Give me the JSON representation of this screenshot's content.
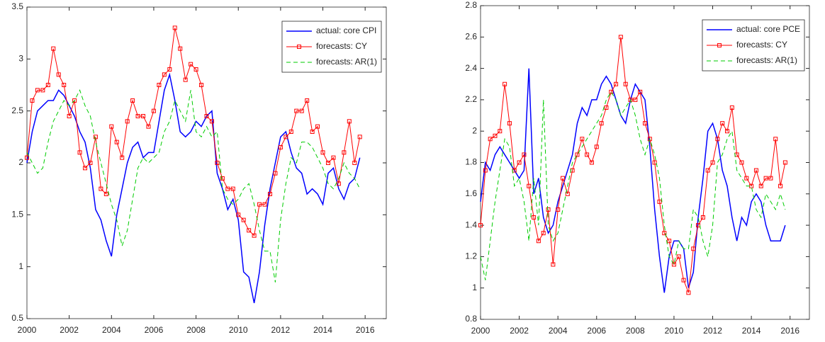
{
  "chart_data": [
    {
      "type": "line",
      "x": [
        2000,
        2000.25,
        2000.5,
        2000.75,
        2001,
        2001.25,
        2001.5,
        2001.75,
        2002,
        2002.25,
        2002.5,
        2002.75,
        2003,
        2003.25,
        2003.5,
        2003.75,
        2004,
        2004.25,
        2004.5,
        2004.75,
        2005,
        2005.25,
        2005.5,
        2005.75,
        2006,
        2006.25,
        2006.5,
        2006.75,
        2007,
        2007.25,
        2007.5,
        2007.75,
        2008,
        2008.25,
        2008.5,
        2008.75,
        2009,
        2009.25,
        2009.5,
        2009.75,
        2010,
        2010.25,
        2010.5,
        2010.75,
        2011,
        2011.25,
        2011.5,
        2011.75,
        2012,
        2012.25,
        2012.5,
        2012.75,
        2013,
        2013.25,
        2013.5,
        2013.75,
        2014,
        2014.25,
        2014.5,
        2014.75,
        2015,
        2015.25,
        2015.5,
        2015.75
      ],
      "series": [
        {
          "name": "actual: core CPI",
          "color": "#0000ff",
          "linestyle": "solid",
          "marker": "none",
          "values": [
            2.0,
            2.3,
            2.5,
            2.55,
            2.6,
            2.6,
            2.7,
            2.65,
            2.55,
            2.45,
            2.3,
            2.2,
            1.95,
            1.55,
            1.45,
            1.25,
            1.1,
            1.5,
            1.75,
            2.0,
            2.15,
            2.2,
            2.05,
            2.1,
            2.1,
            2.4,
            2.7,
            2.85,
            2.6,
            2.3,
            2.25,
            2.3,
            2.4,
            2.35,
            2.45,
            2.5,
            1.9,
            1.75,
            1.55,
            1.65,
            1.45,
            0.95,
            0.9,
            0.65,
            0.95,
            1.4,
            1.75,
            2.0,
            2.25,
            2.3,
            2.1,
            1.95,
            1.9,
            1.7,
            1.75,
            1.7,
            1.6,
            1.9,
            1.95,
            1.75,
            1.65,
            1.8,
            1.85,
            2.05
          ]
        },
        {
          "name": "forecasts: CY",
          "color": "#ff0000",
          "linestyle": "solid",
          "marker": "square",
          "values": [
            2.05,
            2.6,
            2.7,
            2.7,
            2.75,
            3.1,
            2.85,
            2.75,
            2.45,
            2.6,
            2.1,
            1.95,
            2.0,
            2.25,
            1.75,
            1.7,
            2.35,
            2.2,
            2.05,
            2.4,
            2.6,
            2.45,
            2.45,
            2.35,
            2.5,
            2.75,
            2.85,
            2.9,
            3.3,
            3.1,
            2.8,
            2.95,
            2.9,
            2.75,
            2.45,
            2.4,
            2.0,
            1.85,
            1.75,
            1.75,
            1.5,
            1.45,
            1.35,
            1.3,
            1.6,
            1.6,
            1.7,
            1.9,
            2.15,
            2.25,
            2.3,
            2.5,
            2.5,
            2.6,
            2.3,
            2.35,
            2.1,
            2.0,
            2.05,
            1.8,
            2.1,
            2.4,
            2.0,
            2.25
          ]
        },
        {
          "name": "forecasts: AR(1)",
          "color": "#00cc00",
          "linestyle": "dashed",
          "marker": "none",
          "values": [
            2.1,
            2.0,
            1.9,
            1.95,
            2.2,
            2.4,
            2.5,
            2.6,
            2.55,
            2.6,
            2.7,
            2.55,
            2.45,
            2.2,
            2.0,
            1.8,
            1.6,
            1.45,
            1.2,
            1.35,
            1.65,
            1.95,
            2.05,
            2.0,
            2.05,
            2.1,
            2.3,
            2.4,
            2.6,
            2.5,
            2.4,
            2.7,
            2.3,
            2.25,
            2.35,
            2.25,
            2.3,
            1.75,
            1.65,
            1.6,
            1.65,
            1.75,
            1.8,
            1.6,
            1.35,
            1.15,
            1.15,
            0.85,
            1.45,
            1.8,
            2.05,
            2.0,
            2.2,
            2.2,
            2.15,
            2.05,
            1.95,
            1.8,
            1.75,
            1.85,
            2.0,
            1.9,
            1.85,
            1.75
          ]
        }
      ],
      "xlim": [
        2000,
        2017
      ],
      "xticks": [
        2000,
        2002,
        2004,
        2006,
        2008,
        2010,
        2012,
        2014,
        2016
      ],
      "ylim": [
        0.5,
        3.5
      ],
      "yticks": [
        0.5,
        1,
        1.5,
        2,
        2.5,
        3,
        3.5
      ],
      "grid": false,
      "legend": "upper-right"
    },
    {
      "type": "line",
      "x": [
        2000,
        2000.25,
        2000.5,
        2000.75,
        2001,
        2001.25,
        2001.5,
        2001.75,
        2002,
        2002.25,
        2002.5,
        2002.75,
        2003,
        2003.25,
        2003.5,
        2003.75,
        2004,
        2004.25,
        2004.5,
        2004.75,
        2005,
        2005.25,
        2005.5,
        2005.75,
        2006,
        2006.25,
        2006.5,
        2006.75,
        2007,
        2007.25,
        2007.5,
        2007.75,
        2008,
        2008.25,
        2008.5,
        2008.75,
        2009,
        2009.25,
        2009.5,
        2009.75,
        2010,
        2010.25,
        2010.5,
        2010.75,
        2011,
        2011.25,
        2011.5,
        2011.75,
        2012,
        2012.25,
        2012.5,
        2012.75,
        2013,
        2013.25,
        2013.5,
        2013.75,
        2014,
        2014.25,
        2014.5,
        2014.75,
        2015,
        2015.25,
        2015.5,
        2015.75
      ],
      "series": [
        {
          "name": "actual: core PCE",
          "color": "#0000ff",
          "linestyle": "solid",
          "marker": "none",
          "values": [
            1.55,
            1.8,
            1.75,
            1.85,
            1.9,
            1.85,
            1.8,
            1.75,
            1.7,
            1.75,
            2.4,
            1.6,
            1.7,
            1.45,
            1.35,
            1.4,
            1.55,
            1.65,
            1.75,
            1.85,
            2.05,
            2.15,
            2.1,
            2.2,
            2.2,
            2.3,
            2.35,
            2.3,
            2.2,
            2.1,
            2.05,
            2.2,
            2.3,
            2.25,
            2.2,
            1.9,
            1.5,
            1.2,
            0.97,
            1.2,
            1.3,
            1.3,
            1.25,
            1.0,
            1.1,
            1.45,
            1.7,
            2.0,
            2.05,
            1.95,
            1.75,
            1.65,
            1.45,
            1.3,
            1.45,
            1.4,
            1.55,
            1.6,
            1.55,
            1.4,
            1.3,
            1.3,
            1.3,
            1.4
          ]
        },
        {
          "name": "forecasts: CY",
          "color": "#ff0000",
          "linestyle": "solid",
          "marker": "square",
          "values": [
            1.4,
            1.75,
            1.95,
            1.97,
            2.0,
            2.3,
            2.05,
            1.75,
            1.8,
            1.85,
            1.65,
            1.45,
            1.3,
            1.35,
            1.5,
            1.15,
            1.5,
            1.7,
            1.6,
            1.75,
            1.85,
            1.95,
            1.85,
            1.8,
            1.9,
            2.05,
            2.15,
            2.25,
            2.3,
            2.6,
            2.3,
            2.2,
            2.2,
            2.25,
            2.05,
            1.95,
            1.8,
            1.55,
            1.35,
            1.3,
            1.15,
            1.2,
            1.05,
            0.97,
            1.25,
            1.4,
            1.45,
            1.75,
            1.8,
            1.95,
            2.05,
            2.0,
            2.15,
            1.85,
            1.8,
            1.7,
            1.65,
            1.75,
            1.65,
            1.7,
            1.7,
            1.95,
            1.65,
            1.8
          ]
        },
        {
          "name": "forecasts: AR(1)",
          "color": "#00cc00",
          "linestyle": "dashed",
          "marker": "none",
          "values": [
            1.2,
            1.05,
            1.3,
            1.55,
            1.75,
            1.95,
            1.9,
            1.65,
            1.7,
            1.55,
            1.3,
            1.7,
            1.4,
            2.2,
            1.4,
            1.3,
            1.35,
            1.5,
            1.65,
            1.8,
            1.85,
            1.9,
            1.95,
            2.0,
            2.05,
            2.1,
            2.2,
            2.25,
            2.2,
            2.1,
            2.15,
            2.2,
            2.1,
            1.95,
            1.85,
            1.95,
            1.85,
            1.7,
            1.4,
            1.2,
            1.15,
            1.3,
            1.25,
            1.25,
            1.5,
            1.45,
            1.3,
            1.2,
            1.4,
            1.8,
            1.85,
            1.95,
            2.0,
            1.75,
            1.7,
            1.65,
            1.65,
            1.5,
            1.45,
            1.6,
            1.55,
            1.5,
            1.6,
            1.5
          ]
        }
      ],
      "xlim": [
        2000,
        2017
      ],
      "xticks": [
        2000,
        2002,
        2004,
        2006,
        2008,
        2010,
        2012,
        2014,
        2016
      ],
      "ylim": [
        0.8,
        2.8
      ],
      "yticks": [
        0.8,
        1,
        1.2,
        1.4,
        1.6,
        1.8,
        2,
        2.2,
        2.4,
        2.6,
        2.8
      ],
      "grid": false,
      "legend": "upper-right"
    }
  ]
}
